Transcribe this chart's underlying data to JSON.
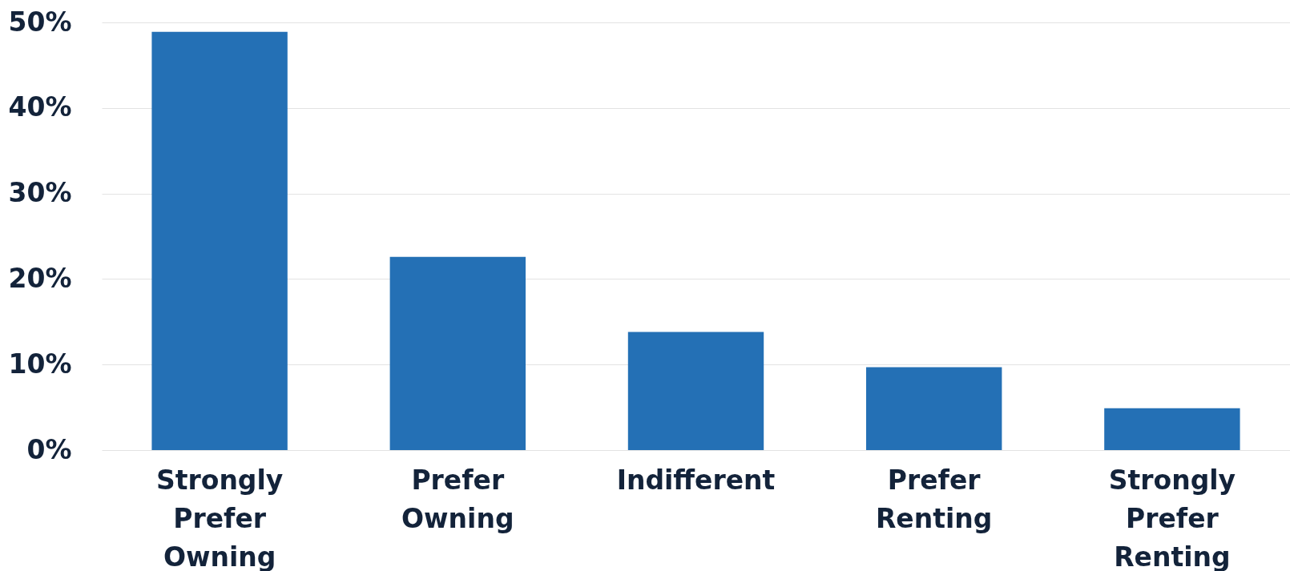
{
  "chart_data": {
    "type": "bar",
    "categories": [
      "Strongly Prefer Owning",
      "Prefer Owning",
      "Indifferent",
      "Prefer Renting",
      "Strongly Prefer Renting"
    ],
    "values": [
      48.9,
      22.6,
      13.8,
      9.7,
      4.9
    ],
    "color": "#2470b5",
    "ylim": [
      0,
      50
    ],
    "yticks": [
      {
        "value": 0,
        "label": "0%"
      },
      {
        "value": 10,
        "label": "10%"
      },
      {
        "value": 20,
        "label": "20%"
      },
      {
        "value": 30,
        "label": "30%"
      },
      {
        "value": 40,
        "label": "40%"
      },
      {
        "value": 50,
        "label": "50%"
      }
    ],
    "grid": "y"
  }
}
